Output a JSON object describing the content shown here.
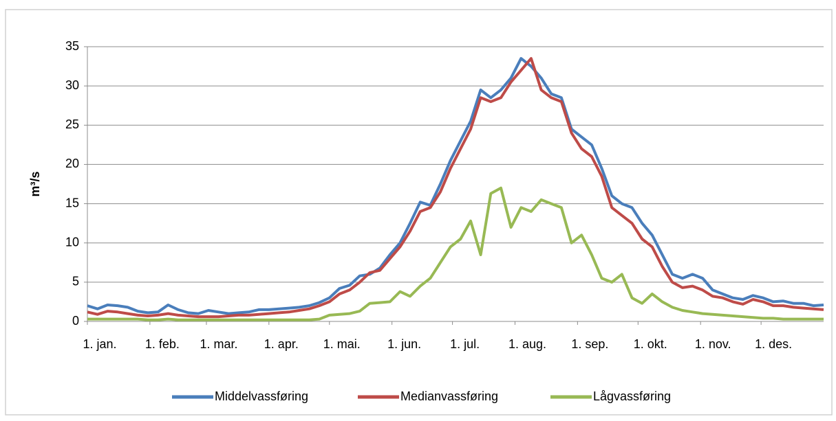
{
  "chart_data": {
    "type": "line",
    "y_label": "m³/s",
    "x": [
      0,
      5,
      10,
      15,
      20,
      25,
      30,
      35,
      40,
      45,
      50,
      55,
      60,
      65,
      70,
      75,
      80,
      85,
      90,
      95,
      100,
      105,
      110,
      115,
      120,
      125,
      130,
      135,
      140,
      145,
      150,
      155,
      160,
      165,
      170,
      175,
      180,
      185,
      190,
      195,
      200,
      205,
      210,
      215,
      220,
      225,
      230,
      235,
      240,
      245,
      250,
      255,
      260,
      265,
      270,
      275,
      280,
      285,
      290,
      295,
      300,
      305,
      310,
      315,
      320,
      325,
      330,
      335,
      340,
      345,
      350,
      355,
      360,
      365
    ],
    "xlim": [
      0,
      365
    ],
    "xticks": [
      {
        "value": 0,
        "label": "1. jan."
      },
      {
        "value": 31,
        "label": "1. feb."
      },
      {
        "value": 59,
        "label": "1. mar."
      },
      {
        "value": 90,
        "label": "1. apr."
      },
      {
        "value": 120,
        "label": "1. mai."
      },
      {
        "value": 151,
        "label": "1. jun."
      },
      {
        "value": 181,
        "label": "1. jul."
      },
      {
        "value": 212,
        "label": "1. aug."
      },
      {
        "value": 243,
        "label": "1. sep."
      },
      {
        "value": 273,
        "label": "1. okt."
      },
      {
        "value": 304,
        "label": "1. nov."
      },
      {
        "value": 334,
        "label": "1. des."
      }
    ],
    "ylim": [
      0,
      35
    ],
    "yticks": [
      0,
      5,
      10,
      15,
      20,
      25,
      30,
      35
    ],
    "grid": true,
    "legend": "bottom",
    "series": [
      {
        "name": "Middelvassføring",
        "color": "#4a7ebb",
        "values": [
          2.0,
          1.6,
          2.1,
          2.0,
          1.8,
          1.3,
          1.1,
          1.2,
          2.1,
          1.5,
          1.1,
          1.0,
          1.4,
          1.2,
          1.0,
          1.1,
          1.2,
          1.5,
          1.5,
          1.6,
          1.7,
          1.8,
          2.0,
          2.4,
          3.0,
          4.2,
          4.6,
          5.8,
          6.0,
          6.8,
          8.5,
          10.0,
          12.5,
          15.2,
          14.8,
          17.5,
          20.5,
          23.0,
          25.5,
          29.5,
          28.5,
          29.5,
          31.0,
          33.5,
          32.5,
          31.0,
          29.0,
          28.5,
          24.5,
          23.5,
          22.5,
          19.5,
          16.0,
          15.0,
          14.5,
          12.5,
          11.0,
          8.5,
          6.0,
          5.5,
          6.0,
          5.5,
          4.0,
          3.5,
          3.0,
          2.8,
          3.3,
          3.0,
          2.5,
          2.6,
          2.3,
          2.3,
          2.0,
          2.1
        ]
      },
      {
        "name": "Medianvassføring",
        "color": "#be4b48",
        "values": [
          1.2,
          0.9,
          1.3,
          1.2,
          1.0,
          0.8,
          0.7,
          0.8,
          1.0,
          0.8,
          0.7,
          0.6,
          0.6,
          0.6,
          0.7,
          0.8,
          0.8,
          0.9,
          1.0,
          1.1,
          1.2,
          1.4,
          1.6,
          2.0,
          2.5,
          3.5,
          4.0,
          5.0,
          6.2,
          6.5,
          8.0,
          9.5,
          11.5,
          14.0,
          14.5,
          16.5,
          19.5,
          22.0,
          24.5,
          28.5,
          28.0,
          28.5,
          30.5,
          32.0,
          33.5,
          29.5,
          28.5,
          28.0,
          24.0,
          22.0,
          21.0,
          18.5,
          14.5,
          13.5,
          12.5,
          10.5,
          9.5,
          7.0,
          5.0,
          4.3,
          4.5,
          4.0,
          3.2,
          3.0,
          2.5,
          2.2,
          2.8,
          2.5,
          2.0,
          2.0,
          1.8,
          1.7,
          1.6,
          1.5
        ]
      },
      {
        "name": "Lågvassføring",
        "color": "#98b954",
        "values": [
          0.3,
          0.3,
          0.3,
          0.3,
          0.3,
          0.3,
          0.2,
          0.2,
          0.3,
          0.2,
          0.2,
          0.2,
          0.2,
          0.2,
          0.2,
          0.2,
          0.2,
          0.2,
          0.2,
          0.2,
          0.2,
          0.2,
          0.2,
          0.3,
          0.8,
          0.9,
          1.0,
          1.3,
          2.3,
          2.4,
          2.5,
          3.8,
          3.2,
          4.5,
          5.5,
          7.5,
          9.5,
          10.5,
          12.8,
          8.5,
          16.3,
          17.0,
          12.0,
          14.5,
          14.0,
          15.5,
          15.0,
          14.5,
          10.0,
          11.0,
          8.5,
          5.5,
          5.0,
          6.0,
          3.0,
          2.3,
          3.5,
          2.5,
          1.8,
          1.4,
          1.2,
          1.0,
          0.9,
          0.8,
          0.7,
          0.6,
          0.5,
          0.4,
          0.4,
          0.3,
          0.3,
          0.3,
          0.3,
          0.3
        ]
      }
    ]
  }
}
